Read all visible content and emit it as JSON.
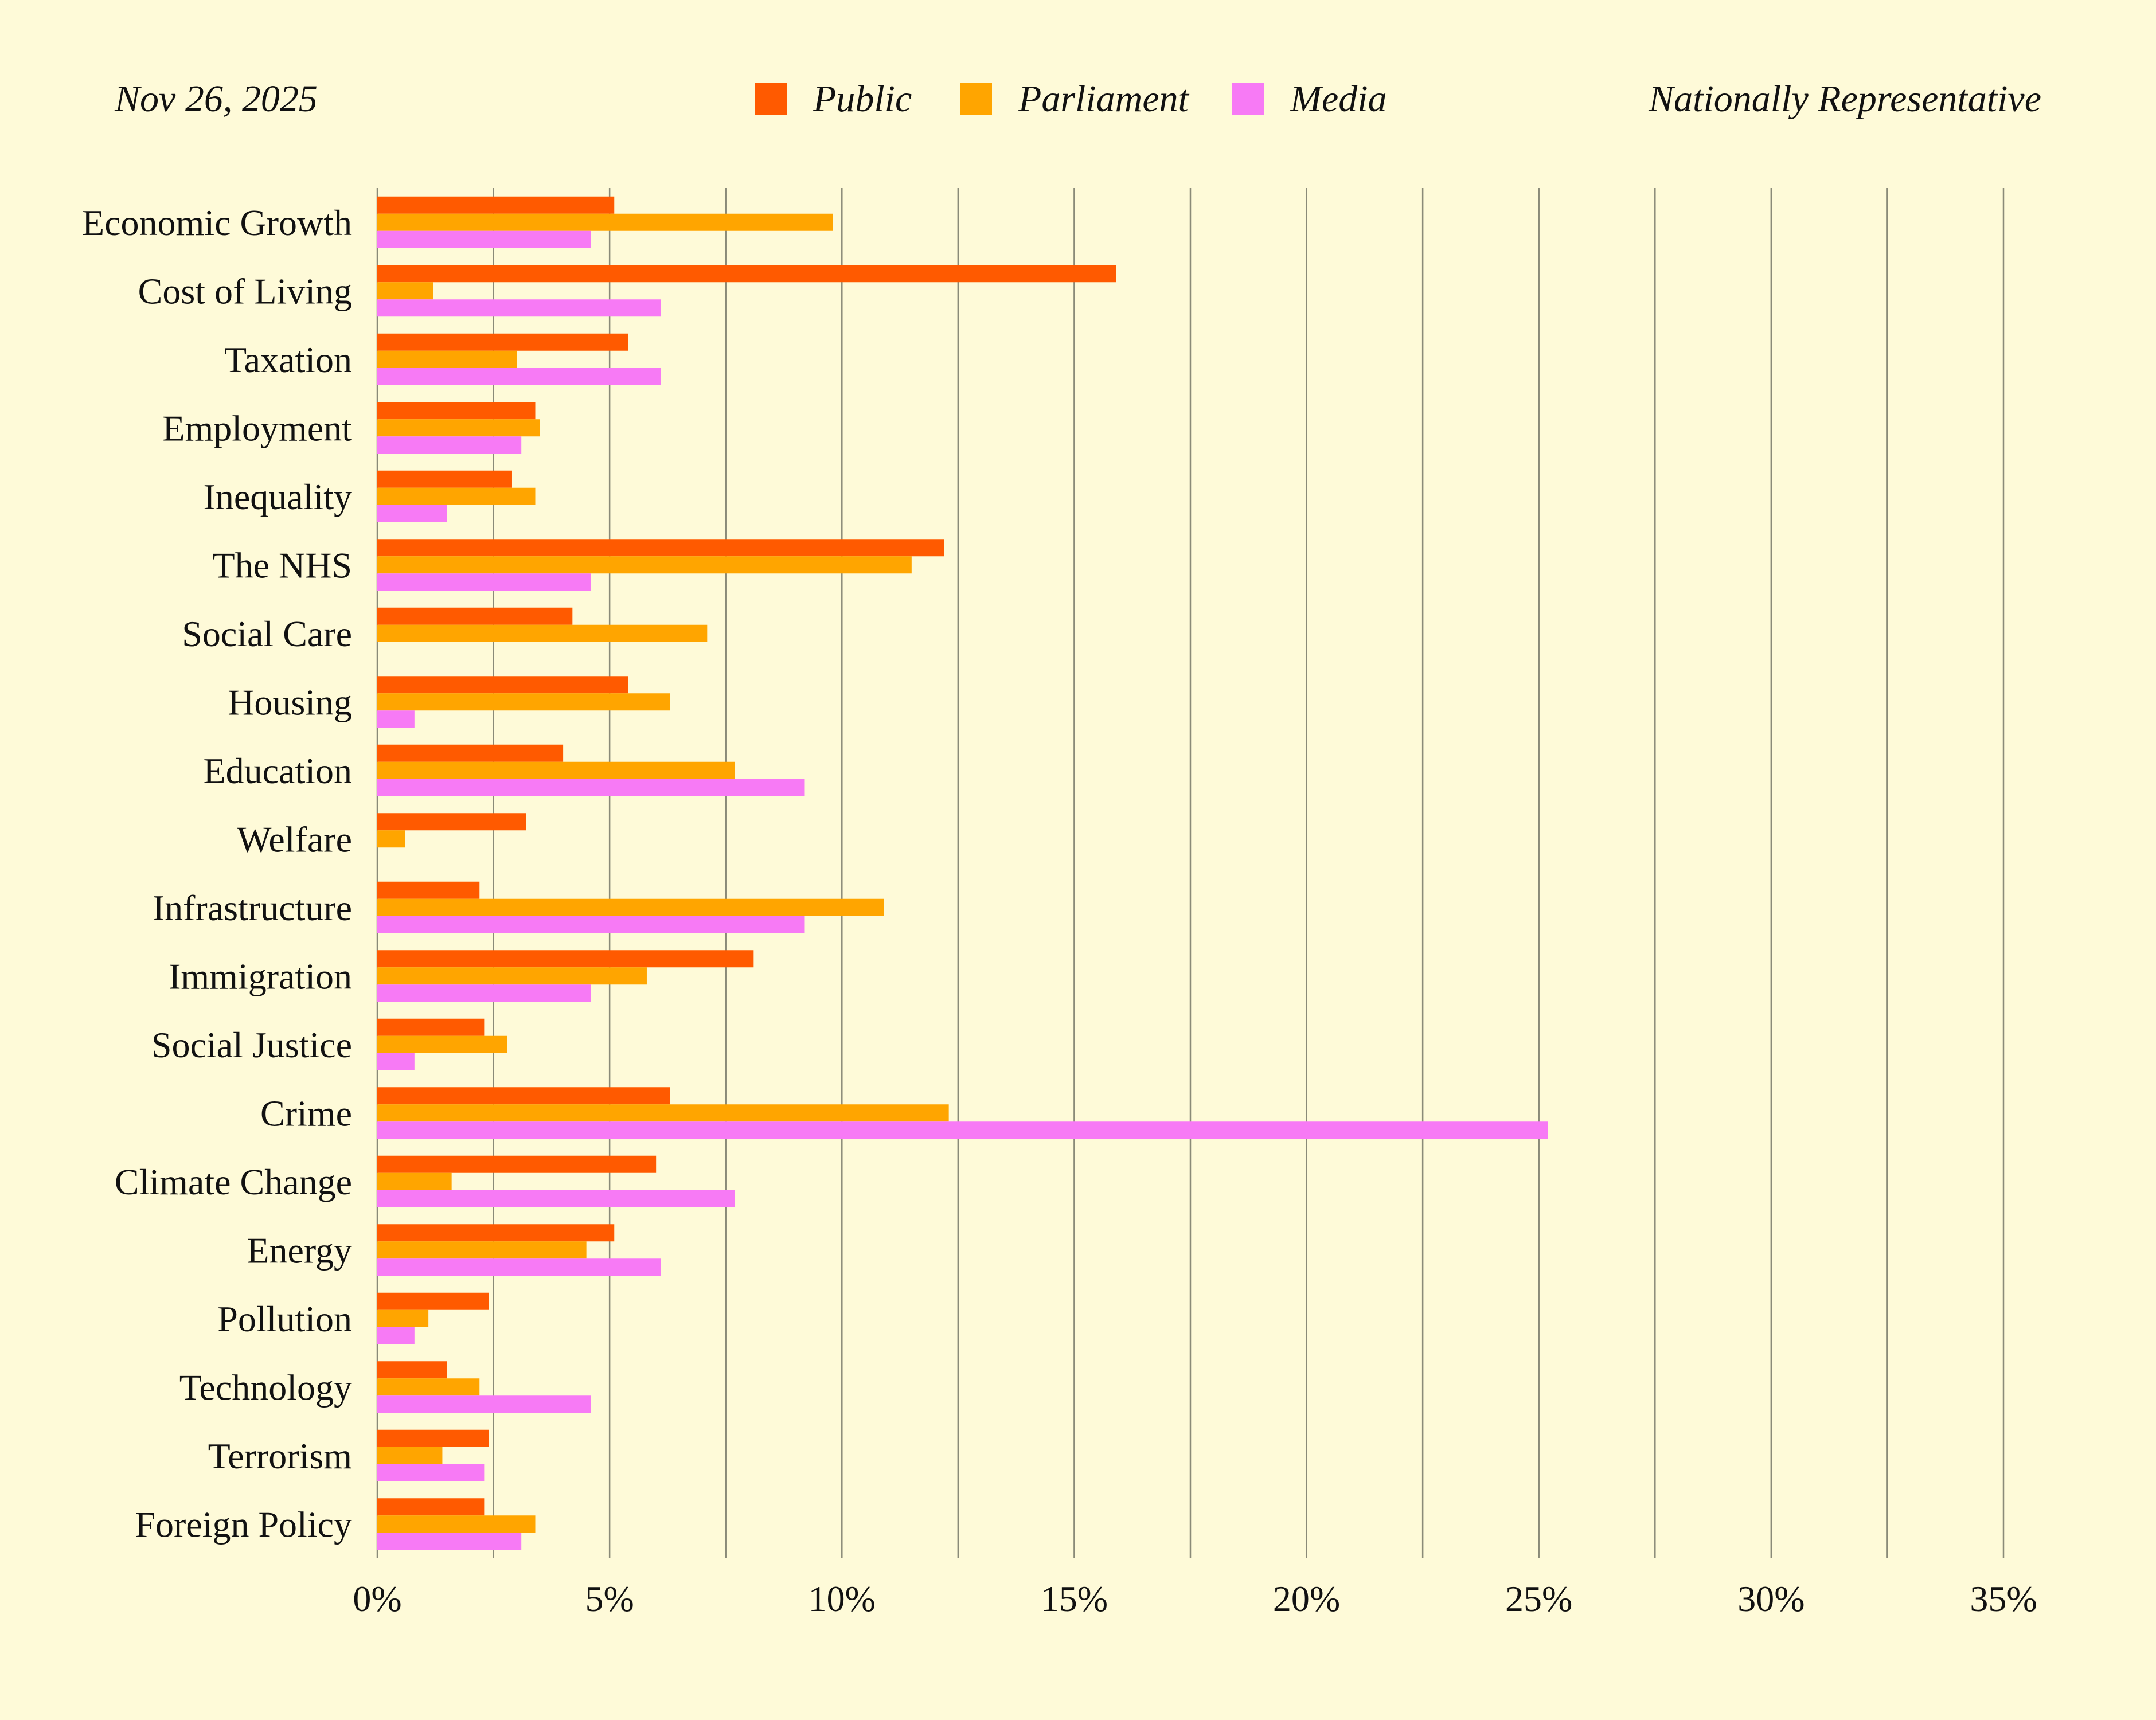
{
  "header": {
    "date": "Nov 26, 2025",
    "sample": "Nationally Representative"
  },
  "legend": [
    {
      "name": "Public",
      "color": "#ff5a00"
    },
    {
      "name": "Parliament",
      "color": "#ffa500"
    },
    {
      "name": "Media",
      "color": "#f77af5"
    }
  ],
  "chart_data": {
    "type": "bar",
    "orientation": "horizontal",
    "categories": [
      "Economic Growth",
      "Cost of Living",
      "Taxation",
      "Employment",
      "Inequality",
      "The NHS",
      "Social Care",
      "Housing",
      "Education",
      "Welfare",
      "Infrastructure",
      "Immigration",
      "Social Justice",
      "Crime",
      "Climate Change",
      "Energy",
      "Pollution",
      "Technology",
      "Terrorism",
      "Foreign Policy"
    ],
    "series": [
      {
        "name": "Public",
        "color": "#ff5a00",
        "values": [
          5.1,
          15.9,
          5.4,
          3.4,
          2.9,
          12.2,
          4.2,
          5.4,
          4.0,
          3.2,
          2.2,
          8.1,
          2.3,
          6.3,
          6.0,
          5.1,
          2.4,
          1.5,
          2.4,
          2.3
        ]
      },
      {
        "name": "Parliament",
        "color": "#ffa500",
        "values": [
          9.8,
          1.2,
          3.0,
          3.5,
          3.4,
          11.5,
          7.1,
          6.3,
          7.7,
          0.6,
          10.9,
          5.8,
          2.8,
          12.3,
          1.6,
          4.5,
          1.1,
          2.2,
          1.4,
          3.4
        ]
      },
      {
        "name": "Media",
        "color": "#f77af5",
        "values": [
          4.6,
          6.1,
          6.1,
          3.1,
          1.5,
          4.6,
          0.0,
          0.8,
          9.2,
          0.0,
          9.2,
          4.6,
          0.8,
          25.2,
          7.7,
          6.1,
          0.8,
          4.6,
          2.3,
          3.1
        ]
      }
    ],
    "xlim": [
      0,
      35
    ],
    "xticks": [
      "0%",
      "5%",
      "10%",
      "15%",
      "20%",
      "25%",
      "30%",
      "35%"
    ],
    "grid": true,
    "legend_position": "top-center"
  }
}
